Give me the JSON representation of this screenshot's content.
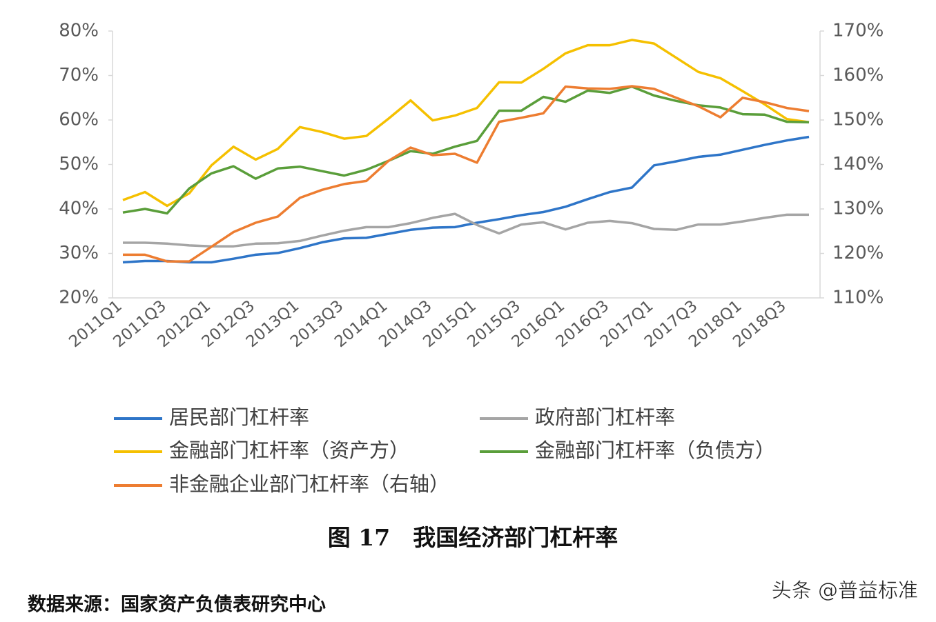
{
  "chart_data": {
    "type": "line",
    "title": "图 17　我国经济部门杠杆率",
    "source": "数据来源：国家资产负债表研究中心",
    "watermark": "头条 @普益标准",
    "categories": [
      "2011Q1",
      null,
      "2011Q3",
      null,
      "2012Q1",
      null,
      "2012Q3",
      null,
      "2013Q1",
      null,
      "2013Q3",
      null,
      "2014Q1",
      null,
      "2014Q3",
      null,
      "2015Q1",
      null,
      "2015Q3",
      null,
      "2016Q1",
      null,
      "2016Q3",
      null,
      "2017Q1",
      null,
      "2017Q3",
      null,
      "2018Q1",
      null,
      "2018Q3",
      null
    ],
    "ylim": [
      20,
      80
    ],
    "yticks": [
      {
        "value": 20,
        "label": "20%"
      },
      {
        "value": 30,
        "label": "30%"
      },
      {
        "value": 40,
        "label": "40%"
      },
      {
        "value": 50,
        "label": "50%"
      },
      {
        "value": 60,
        "label": "60%"
      },
      {
        "value": 70,
        "label": "70%"
      },
      {
        "value": 80,
        "label": "80%"
      }
    ],
    "y2lim": [
      110,
      170
    ],
    "y2ticks": [
      {
        "value": 110,
        "label": "110%"
      },
      {
        "value": 120,
        "label": "120%"
      },
      {
        "value": 130,
        "label": "130%"
      },
      {
        "value": 140,
        "label": "140%"
      },
      {
        "value": 150,
        "label": "150%"
      },
      {
        "value": 160,
        "label": "160%"
      },
      {
        "value": 170,
        "label": "170%"
      }
    ],
    "series": [
      {
        "name": "居民部门杠杆率",
        "color": "#2e75c8",
        "values": [
          28.0,
          28.3,
          28.3,
          28.0,
          28.0,
          28.8,
          29.7,
          30.1,
          31.2,
          32.5,
          33.4,
          33.5,
          34.4,
          35.3,
          35.8,
          35.9,
          36.9,
          37.7,
          38.6,
          39.3,
          40.5,
          42.2,
          43.8,
          44.8,
          49.8,
          50.7,
          51.7,
          52.2,
          53.3,
          54.4,
          55.4,
          56.2
        ]
      },
      {
        "name": "政府部门杠杆率",
        "color": "#a5a5a5",
        "values": [
          32.4,
          32.4,
          32.2,
          31.8,
          31.6,
          31.6,
          32.2,
          32.3,
          32.8,
          34.0,
          35.1,
          35.9,
          35.9,
          36.8,
          38.0,
          38.9,
          36.4,
          34.5,
          36.5,
          37.0,
          35.4,
          36.9,
          37.3,
          36.8,
          35.5,
          35.3,
          36.5,
          36.5,
          37.2,
          38.0,
          38.7,
          38.7
        ]
      },
      {
        "name": "金融部门杠杆率（资产方）",
        "color": "#f5c000",
        "values": [
          42.0,
          43.8,
          40.7,
          43.5,
          49.8,
          54.0,
          51.1,
          53.5,
          58.4,
          57.3,
          55.8,
          56.4,
          60.3,
          64.4,
          59.9,
          61.0,
          62.7,
          68.5,
          68.4,
          71.5,
          75.0,
          76.8,
          76.8,
          78.0,
          77.2,
          74.0,
          70.8,
          69.4,
          66.5,
          63.5,
          60.2,
          59.5
        ]
      },
      {
        "name": "金融部门杠杆率（负债方）",
        "color": "#5a9e3a",
        "values": [
          39.2,
          40.0,
          39.0,
          44.6,
          48.0,
          49.6,
          46.8,
          49.1,
          49.5,
          48.5,
          47.5,
          48.8,
          50.8,
          53.0,
          52.4,
          54.0,
          55.3,
          62.1,
          62.1,
          65.2,
          64.1,
          66.6,
          66.1,
          67.5,
          65.5,
          64.3,
          63.3,
          62.8,
          61.3,
          61.2,
          59.6,
          59.5
        ]
      },
      {
        "name": "非金融企业部门杠杆率（右轴）",
        "color": "#ed7d31",
        "axis": "y2",
        "values": [
          119.7,
          119.7,
          118.2,
          118.2,
          121.5,
          124.8,
          126.9,
          128.3,
          132.5,
          134.3,
          135.6,
          136.3,
          140.8,
          143.8,
          142.1,
          142.4,
          140.4,
          149.6,
          150.5,
          151.5,
          157.5,
          157.1,
          157.0,
          157.6,
          157.0,
          155.0,
          153.1,
          150.6,
          155.0,
          154.0,
          152.7,
          152.0
        ]
      }
    ]
  }
}
